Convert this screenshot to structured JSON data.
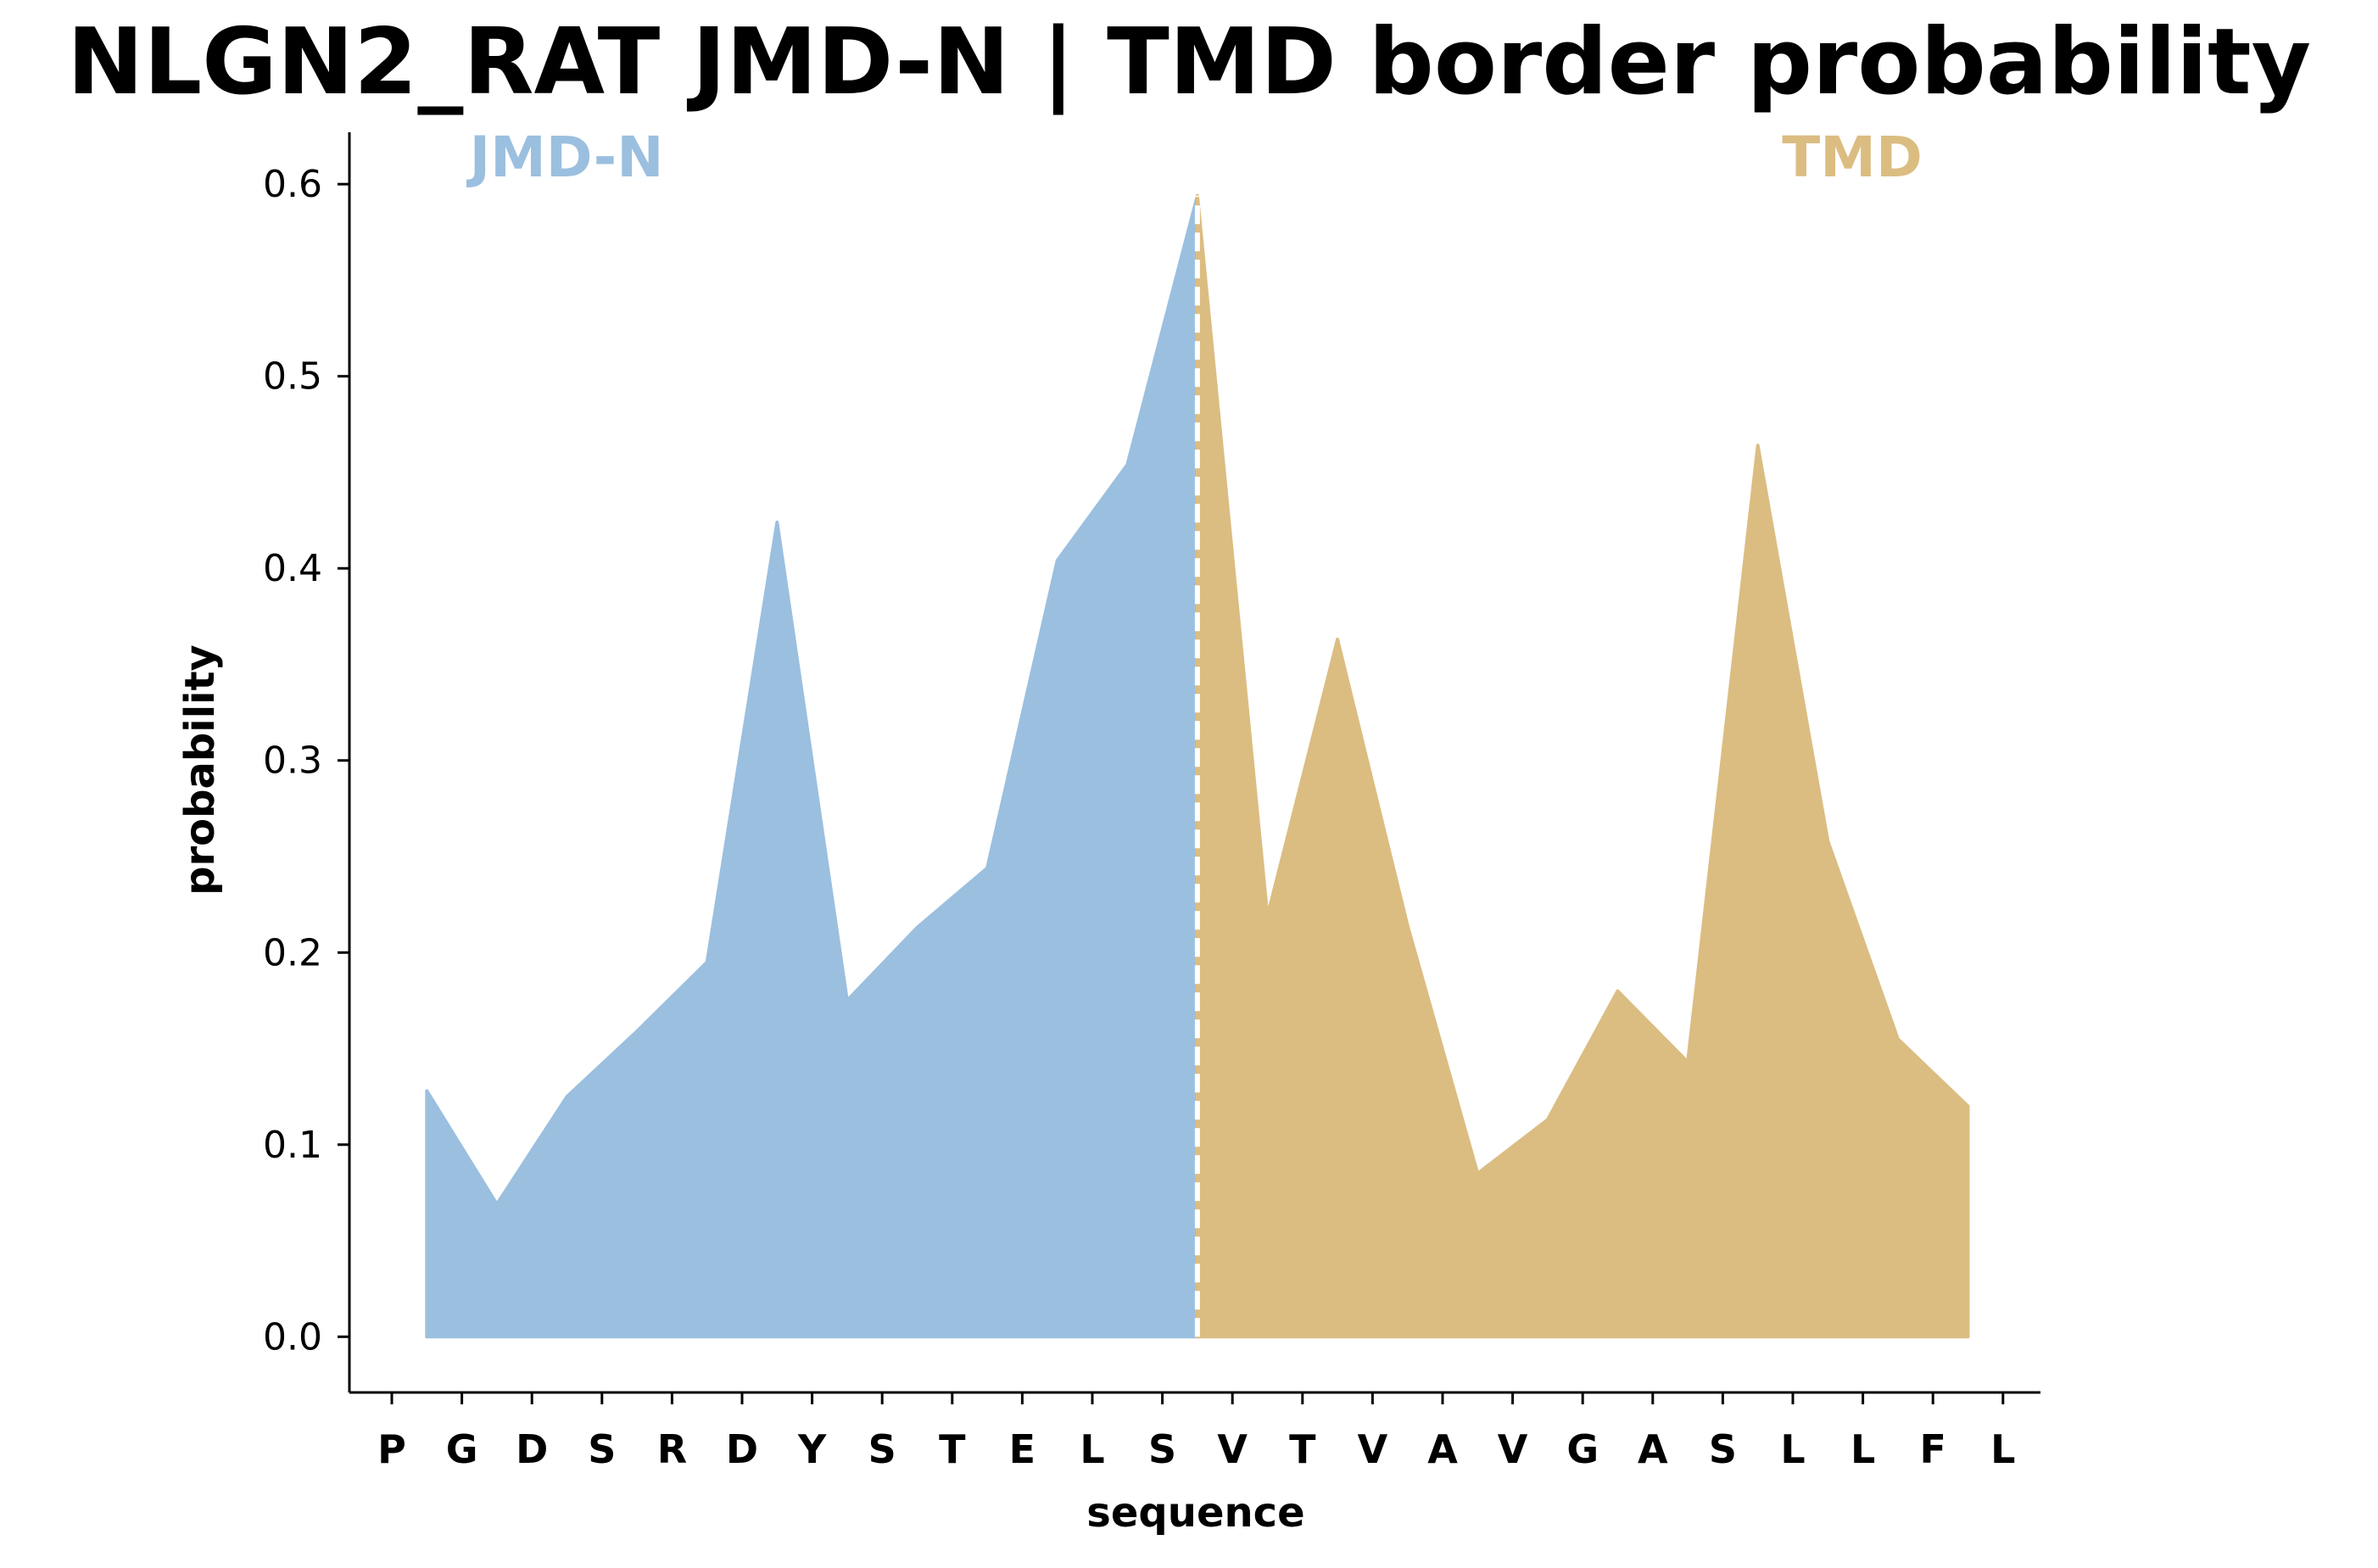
{
  "chart_data": {
    "type": "area",
    "title": "NLGN2_RAT JMD-N | TMD border probability",
    "xlabel": "sequence",
    "ylabel": "probability",
    "ylim": [
      -0.029,
      0.627
    ],
    "yticks": [
      "0.0",
      "0.1",
      "0.2",
      "0.3",
      "0.4",
      "0.5",
      "0.6"
    ],
    "ytick_values": [
      0.0,
      0.1,
      0.2,
      0.3,
      0.4,
      0.5,
      0.6
    ],
    "categories": [
      "P",
      "G",
      "D",
      "S",
      "R",
      "D",
      "Y",
      "S",
      "T",
      "E",
      "L",
      "S",
      "V",
      "T",
      "V",
      "A",
      "V",
      "G",
      "A",
      "S",
      "L",
      "L",
      "F",
      "L"
    ],
    "series": [
      {
        "name": "JMD-N",
        "color": "#9bbfdf",
        "x": [
          0.5,
          1.5,
          2.5,
          3.5,
          4.5,
          5.5,
          6.5,
          7.5,
          8.5,
          9.5,
          10.5,
          11.5
        ],
        "values": [
          0.128,
          0.069,
          0.125,
          0.159,
          0.195,
          0.424,
          0.175,
          0.213,
          0.244,
          0.404,
          0.454,
          0.594
        ]
      },
      {
        "name": "TMD",
        "color": "#dbbd82",
        "x": [
          11.5,
          12.5,
          13.5,
          14.5,
          15.5,
          16.5,
          17.5,
          18.5,
          19.5,
          20.5,
          21.5,
          22.5
        ],
        "values": [
          0.594,
          0.219,
          0.363,
          0.214,
          0.085,
          0.113,
          0.18,
          0.143,
          0.464,
          0.258,
          0.155,
          0.12
        ]
      }
    ],
    "border_line_x": 11.5,
    "grid": false
  }
}
